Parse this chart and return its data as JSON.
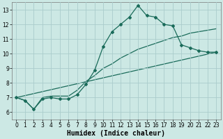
{
  "title": "",
  "xlabel": "Humidex (Indice chaleur)",
  "ylabel": "",
  "bg_color": "#cce8e4",
  "grid_color": "#aacccc",
  "line_color": "#1a6b5a",
  "xlim": [
    -0.5,
    23.5
  ],
  "ylim": [
    5.5,
    13.5
  ],
  "xticks": [
    0,
    1,
    2,
    3,
    4,
    5,
    6,
    7,
    8,
    9,
    10,
    11,
    12,
    13,
    14,
    15,
    16,
    17,
    18,
    19,
    20,
    21,
    22,
    23
  ],
  "yticks": [
    6,
    7,
    8,
    9,
    10,
    11,
    12,
    13
  ],
  "series_main": {
    "x": [
      0,
      1,
      2,
      3,
      4,
      5,
      6,
      7,
      8,
      9,
      10,
      11,
      12,
      13,
      14,
      15,
      16,
      17,
      18,
      19,
      20,
      21,
      22,
      23
    ],
    "y": [
      7.0,
      6.8,
      6.2,
      6.9,
      7.0,
      6.9,
      6.9,
      7.2,
      7.9,
      8.85,
      10.5,
      11.5,
      12.0,
      12.5,
      13.3,
      12.6,
      12.5,
      12.0,
      11.9,
      10.6,
      10.4,
      10.2,
      10.1,
      10.1
    ]
  },
  "series_smooth": {
    "x": [
      0,
      1,
      2,
      3,
      4,
      5,
      6,
      7,
      8,
      9,
      10,
      11,
      12,
      13,
      14,
      15,
      16,
      17,
      18,
      19,
      20,
      21,
      22,
      23
    ],
    "y": [
      7.0,
      6.8,
      6.2,
      7.0,
      7.1,
      7.1,
      7.1,
      7.5,
      8.1,
      8.5,
      9.0,
      9.3,
      9.7,
      10.0,
      10.3,
      10.5,
      10.7,
      10.9,
      11.1,
      11.2,
      11.4,
      11.5,
      11.6,
      11.7
    ]
  },
  "series_line": {
    "x": [
      0,
      23
    ],
    "y": [
      7.0,
      10.1
    ]
  },
  "marker": "D",
  "marker_size": 2.0,
  "linewidth": 0.9,
  "xlabel_fontsize": 7,
  "tick_fontsize": 5.5
}
